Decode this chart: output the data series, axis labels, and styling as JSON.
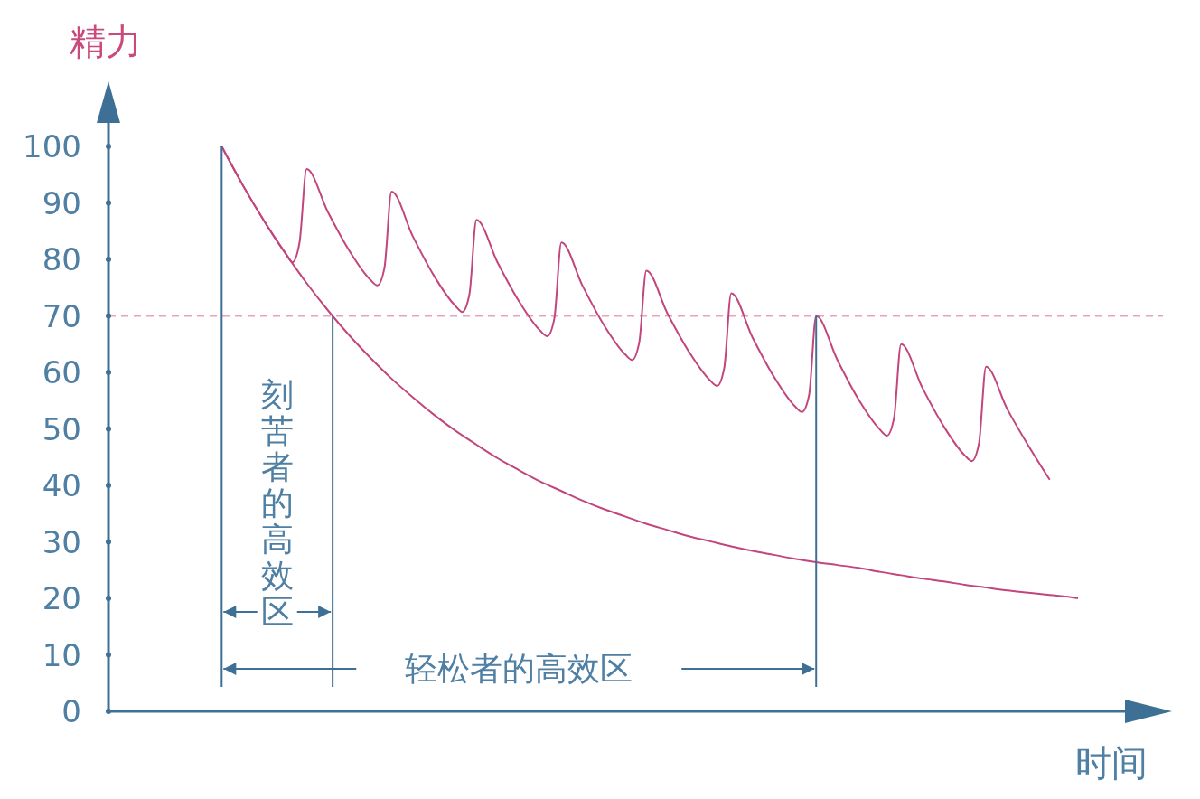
{
  "chart_data": {
    "type": "line",
    "xlabel": "时间",
    "ylabel": "精力",
    "categories": [
      null,
      null,
      null,
      null,
      null,
      null,
      null,
      null,
      null,
      null,
      null,
      null,
      null,
      null,
      null,
      null,
      null,
      null,
      null,
      null,
      null,
      null,
      null,
      null,
      null,
      null,
      null,
      null,
      null,
      null,
      null,
      null,
      null,
      null,
      null,
      null,
      null,
      null,
      null,
      null,
      null,
      null,
      null,
      null,
      null,
      null,
      null,
      null,
      null,
      null,
      null,
      null,
      null,
      null,
      null,
      null,
      null,
      null,
      null,
      null,
      null,
      null,
      null,
      null,
      null,
      null,
      null,
      null,
      null,
      null,
      null,
      null,
      null,
      null,
      null,
      null,
      null,
      null,
      null,
      null,
      null,
      null,
      null,
      null,
      null,
      null,
      null,
      null,
      null,
      null,
      null,
      null,
      null,
      null,
      null,
      null,
      null,
      null,
      null,
      null,
      null,
      null,
      null,
      null,
      null,
      null,
      null,
      null,
      null,
      null,
      null,
      null,
      null,
      null,
      null,
      null,
      null,
      null,
      null,
      null,
      null,
      null,
      null,
      null,
      null,
      null,
      null,
      null,
      null,
      null,
      null,
      null,
      null,
      null,
      null,
      null,
      null,
      null,
      null,
      null,
      null,
      null,
      null,
      null,
      null,
      null,
      null,
      null,
      null,
      null
    ],
    "series": [
      {
        "color": "#c2457c",
        "values": [
          null,
          null,
          null,
          null,
          null,
          null,
          null,
          null,
          null,
          null,
          null,
          null,
          null,
          null,
          null,
          null,
          100,
          null,
          null,
          93.1,
          null,
          null,
          86.8,
          null,
          null,
          81.1,
          79.5,
          83,
          96,
          null,
          null,
          88.4,
          null,
          null,
          81.6,
          null,
          null,
          76.4,
          75.4,
          78.5,
          92,
          null,
          null,
          84.1,
          null,
          null,
          77.1,
          null,
          null,
          71.8,
          70.7,
          73.8,
          87,
          null,
          null,
          79.4,
          null,
          null,
          72.6,
          null,
          null,
          67.4,
          66.4,
          69.5,
          83,
          null,
          null,
          75.3,
          null,
          null,
          68.4,
          null,
          null,
          63.2,
          62.2,
          65.3,
          78,
          null,
          null,
          70.4,
          null,
          null,
          63.7,
          null,
          null,
          58.6,
          57.6,
          60.7,
          74,
          null,
          null,
          66.2,
          null,
          null,
          59.3,
          null,
          null,
          54,
          53,
          56,
          70,
          null,
          null,
          62.2,
          null,
          null,
          55.2,
          null,
          null,
          49.9,
          48.8,
          51.9,
          65,
          null,
          null,
          57.3,
          null,
          null,
          50.5,
          null,
          null,
          45.3,
          44.3,
          47.4,
          61,
          null,
          null,
          53.5,
          null,
          null,
          47,
          null,
          null,
          41,
          null,
          null,
          null,
          null,
          null,
          null,
          null,
          null,
          null,
          null,
          null,
          null,
          null,
          null,
          null,
          null
        ]
      },
      {
        "color": "#c2457c",
        "values": [
          null,
          null,
          null,
          null,
          null,
          null,
          null,
          null,
          null,
          null,
          null,
          null,
          null,
          null,
          null,
          null,
          100,
          null,
          null,
          93.1,
          null,
          null,
          86.8,
          null,
          null,
          81.1,
          null,
          null,
          75.8,
          null,
          null,
          71.0,
          null,
          null,
          66.6,
          null,
          null,
          62.6,
          null,
          null,
          58.9,
          null,
          null,
          55.6,
          null,
          null,
          52.5,
          null,
          null,
          49.7,
          null,
          null,
          47.2,
          null,
          null,
          44.8,
          null,
          null,
          42.7,
          null,
          null,
          40.7,
          null,
          null,
          39.0,
          null,
          null,
          37.3,
          null,
          null,
          35.8,
          null,
          null,
          34.5,
          null,
          null,
          33.2,
          null,
          null,
          32.1,
          null,
          null,
          31.0,
          null,
          null,
          30.1,
          null,
          null,
          29.2,
          null,
          null,
          28.4,
          null,
          null,
          27.7,
          null,
          null,
          27.0,
          null,
          null,
          26.4,
          null,
          null,
          25.9,
          null,
          null,
          25.4,
          null,
          null,
          24.7,
          null,
          null,
          24.1,
          null,
          null,
          23.5,
          null,
          null,
          23.0,
          null,
          null,
          22.4,
          null,
          null,
          21.9,
          null,
          null,
          21.4,
          null,
          null,
          21.0,
          null,
          null,
          20.6,
          null,
          null,
          20.2,
          20.0,
          null,
          null,
          null,
          null,
          null,
          null,
          null,
          null,
          null,
          null,
          null,
          null
        ]
      }
    ],
    "ylim": [
      0,
      100
    ],
    "yticks": [
      0,
      10,
      20,
      30,
      40,
      50,
      60,
      70,
      80,
      90,
      100
    ],
    "tick_labels": "y",
    "ref_lines": [
      {
        "axis": "y",
        "value": 70,
        "color": "#e8a3bb",
        "line_style": "dashed"
      }
    ],
    "annotations": [
      "刻苦者的高效区",
      "轻松者的高效区"
    ]
  }
}
